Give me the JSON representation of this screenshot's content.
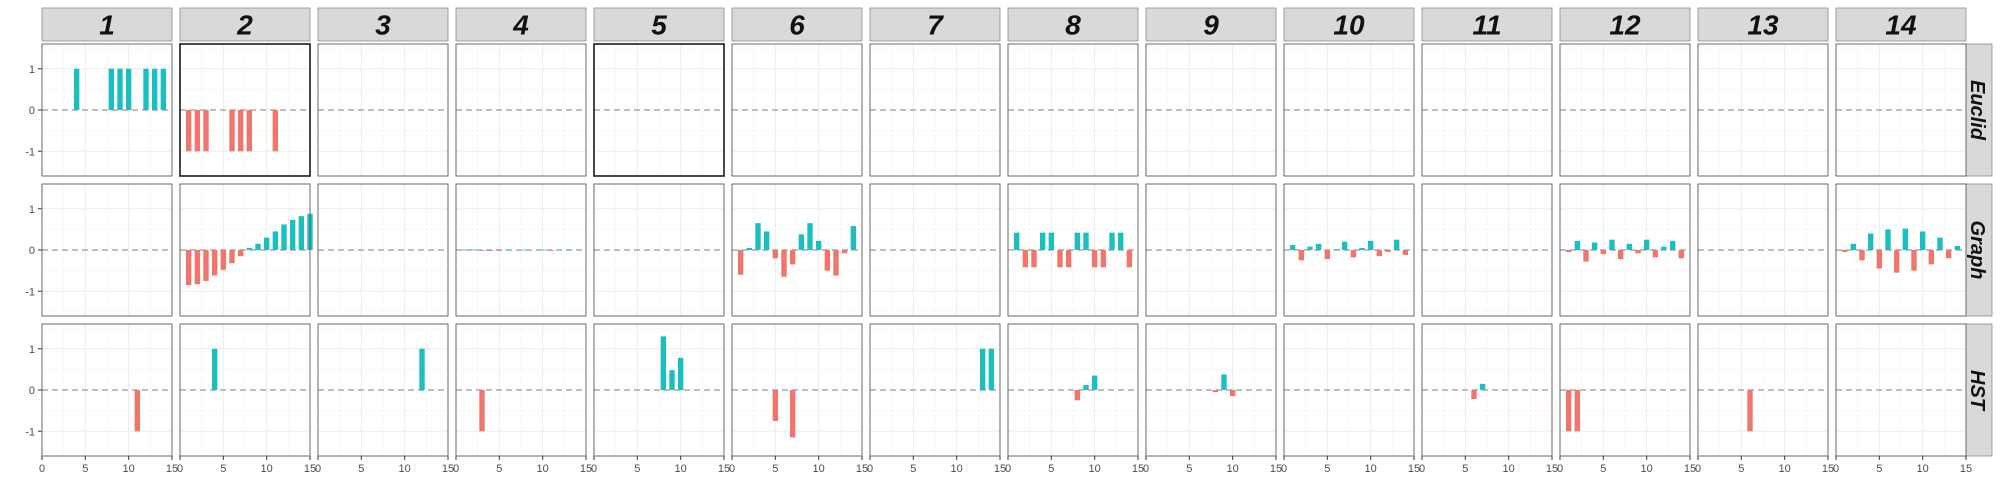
{
  "chart_data": {
    "type": "bar",
    "layout": "facet-grid",
    "columns": [
      "1",
      "2",
      "3",
      "4",
      "5",
      "6",
      "7",
      "8",
      "9",
      "10",
      "11",
      "12",
      "13",
      "14"
    ],
    "rows": [
      "Euclid",
      "Graph",
      "HST"
    ],
    "x_ticks": [
      "0",
      "5",
      "10",
      "15"
    ],
    "y_ticks": [
      "1",
      "0",
      "-1"
    ],
    "xlim": [
      0,
      15
    ],
    "ylim": [
      -1.6,
      1.6
    ],
    "highlighted_panels": [
      [
        0,
        1
      ],
      [
        0,
        4
      ]
    ],
    "colors": {
      "positive": "#1cbfbf",
      "negative": "#f2756b",
      "strip": "#d9d9d9",
      "grid": "#ebebeb",
      "zero_line": "#999999"
    },
    "panels": [
      [
        [
          0,
          0,
          0,
          1,
          0,
          0,
          0,
          1,
          1,
          1,
          0,
          1,
          1,
          1
        ],
        [
          -1,
          -1,
          -1,
          0,
          0,
          -1,
          -1,
          -1,
          0,
          0,
          -1,
          0,
          0,
          0
        ],
        [
          0,
          0,
          0,
          0,
          0,
          0,
          0,
          0,
          0,
          0,
          0,
          0,
          0,
          0
        ],
        [
          0,
          0,
          0,
          0,
          0,
          0,
          0,
          0,
          0,
          0,
          0,
          0,
          0,
          0
        ],
        [
          0,
          0,
          0,
          0,
          0,
          0,
          0,
          0,
          0,
          0,
          0,
          0,
          0,
          0
        ],
        [
          0,
          0,
          0,
          0,
          0,
          0,
          0,
          0,
          0,
          0,
          0,
          0,
          0,
          0
        ],
        [
          0,
          0,
          0,
          0,
          0,
          0,
          0,
          0,
          0,
          0,
          0,
          0,
          0,
          0
        ],
        [
          0,
          0,
          0,
          0,
          0,
          0,
          0,
          0,
          0,
          0,
          0,
          0,
          0,
          0
        ],
        [
          0,
          0,
          0,
          0,
          0,
          0,
          0,
          0,
          0,
          0,
          0,
          0,
          0,
          0
        ],
        [
          0,
          0,
          0,
          0,
          0,
          0,
          0,
          0,
          0,
          0,
          0,
          0,
          0,
          0
        ],
        [
          0,
          0,
          0,
          0,
          0,
          0,
          0,
          0,
          0,
          0,
          0,
          0,
          0,
          0
        ],
        [
          0,
          0,
          0,
          0,
          0,
          0,
          0,
          0,
          0,
          0,
          0,
          0,
          0,
          0
        ],
        [
          0,
          0,
          0,
          0,
          0,
          0,
          0,
          0,
          0,
          0,
          0,
          0,
          0,
          0
        ],
        [
          0,
          0,
          0,
          0,
          0,
          0,
          0,
          0,
          0,
          0,
          0,
          0,
          0,
          0
        ]
      ],
      [
        [
          0,
          0,
          0,
          0,
          0,
          0,
          0,
          0,
          0,
          0,
          0,
          0,
          0,
          0
        ],
        [
          -0.85,
          -0.83,
          -0.75,
          -0.62,
          -0.48,
          -0.32,
          -0.15,
          0.05,
          0.15,
          0.3,
          0.45,
          0.62,
          0.73,
          0.82,
          0.88
        ],
        [
          0,
          0,
          0,
          0,
          0,
          0,
          0,
          0,
          0,
          0,
          0,
          0,
          0,
          0
        ],
        [
          0.01,
          0.01,
          -0.01,
          -0.02,
          -0.01,
          0.01,
          0,
          0.01,
          0,
          0.01,
          -0.01,
          0,
          0.01,
          0
        ],
        [
          0,
          0,
          0,
          0,
          0,
          0,
          0,
          0,
          0,
          0,
          0,
          0,
          0,
          0
        ],
        [
          -0.6,
          0.05,
          0.65,
          0.45,
          -0.2,
          -0.65,
          -0.35,
          0.38,
          0.65,
          0.22,
          -0.5,
          -0.62,
          -0.08,
          0.58
        ],
        [
          0,
          0,
          0,
          0,
          0,
          0,
          0,
          0,
          0,
          0,
          0,
          0,
          0,
          0
        ],
        [
          0.42,
          -0.42,
          -0.42,
          0.42,
          0.42,
          -0.42,
          -0.42,
          0.42,
          0.42,
          -0.42,
          -0.42,
          0.42,
          0.42,
          -0.42
        ],
        [
          0,
          0,
          0,
          0,
          0,
          0,
          0,
          0,
          0,
          0,
          0,
          0,
          0,
          0
        ],
        [
          0.12,
          -0.25,
          0.08,
          0.15,
          -0.22,
          0.02,
          0.2,
          -0.18,
          0.05,
          0.22,
          -0.15,
          -0.05,
          0.25,
          -0.12
        ],
        [
          0,
          0,
          0,
          0,
          0,
          0,
          0,
          0,
          0,
          0,
          0,
          0,
          0,
          0
        ],
        [
          -0.05,
          0.22,
          -0.28,
          0.18,
          -0.1,
          0.25,
          -0.22,
          0.15,
          -0.08,
          0.25,
          -0.18,
          0.08,
          0.22,
          -0.2
        ],
        [
          0,
          0,
          0,
          0,
          0,
          0,
          0,
          0,
          0,
          0,
          0,
          0,
          0,
          0
        ],
        [
          -0.05,
          0.15,
          -0.25,
          0.4,
          -0.45,
          0.5,
          -0.55,
          0.52,
          -0.5,
          0.45,
          -0.35,
          0.3,
          -0.2,
          0.1
        ]
      ],
      [
        [
          0,
          0,
          0,
          0,
          0,
          0,
          0,
          0,
          0,
          0,
          -1,
          0,
          0,
          0
        ],
        [
          0,
          0,
          0,
          1,
          0,
          0,
          0,
          0,
          0,
          0,
          0,
          0,
          0,
          0
        ],
        [
          0,
          0,
          0,
          0,
          0,
          0,
          0,
          0,
          0,
          0,
          0,
          1,
          0,
          0
        ],
        [
          0,
          0,
          -1,
          0,
          0,
          0,
          0,
          0,
          0,
          0,
          0,
          0,
          0,
          0
        ],
        [
          0,
          0,
          0,
          0,
          0,
          0,
          0,
          1.3,
          0.48,
          0.78,
          0,
          0,
          0,
          0
        ],
        [
          0,
          0,
          0,
          0,
          -0.75,
          0,
          -1.15,
          0,
          0,
          0,
          0,
          0,
          0,
          0
        ],
        [
          0,
          0,
          0,
          0,
          0,
          0,
          0,
          0,
          0,
          0,
          0,
          0,
          1,
          1
        ],
        [
          0,
          0,
          0,
          0,
          0,
          0,
          0,
          -0.25,
          0.12,
          0.35,
          0,
          0,
          0,
          0
        ],
        [
          0,
          0,
          0,
          0,
          0,
          0,
          0,
          -0.05,
          0.38,
          -0.15,
          0,
          0,
          0,
          0
        ],
        [
          0,
          0,
          0,
          0,
          0,
          0,
          0,
          0,
          0,
          0,
          0,
          0,
          0,
          0
        ],
        [
          0,
          0,
          0,
          0,
          0,
          -0.22,
          0.15,
          0,
          0,
          0,
          0,
          0,
          0,
          0
        ],
        [
          -1,
          -1,
          0,
          0,
          0,
          0,
          0,
          0,
          0,
          0,
          0,
          0,
          0,
          0
        ],
        [
          0,
          0,
          0,
          0,
          0,
          -1,
          0,
          0,
          0,
          0,
          0,
          0,
          0,
          0
        ],
        [
          0,
          0,
          0,
          0,
          0,
          0,
          0,
          0,
          0,
          0,
          0,
          0,
          0,
          0
        ]
      ]
    ]
  }
}
